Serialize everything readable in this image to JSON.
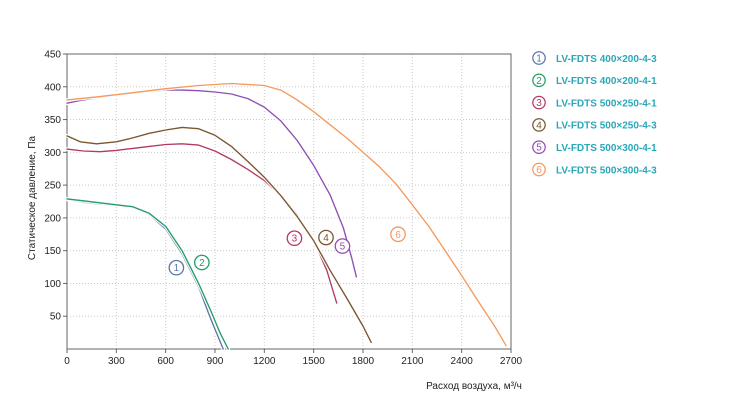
{
  "chart_data": {
    "type": "line",
    "xlabel": "Расход воздуха, м³/ч",
    "ylabel": "Статическое давление, Па",
    "xlim": [
      0,
      2700
    ],
    "ylim": [
      0,
      450
    ],
    "x_ticks": [
      0,
      300,
      600,
      900,
      1200,
      1500,
      1800,
      2100,
      2400,
      2700
    ],
    "y_ticks": [
      50,
      100,
      150,
      200,
      250,
      300,
      350,
      400,
      450
    ],
    "grid": true,
    "legend_position": "right",
    "series": [
      {
        "marker": "1",
        "name": "LV-FDTS 400×200-4-3",
        "color": "#5B77AA",
        "points": [
          [
            0,
            228
          ],
          [
            100,
            224
          ],
          [
            200,
            221
          ],
          [
            300,
            219
          ],
          [
            400,
            216
          ],
          [
            500,
            205
          ],
          [
            600,
            183
          ],
          [
            700,
            145
          ],
          [
            800,
            95
          ],
          [
            860,
            55
          ],
          [
            900,
            30
          ],
          [
            950,
            0
          ]
        ],
        "marker_pos": [
          665,
          124
        ]
      },
      {
        "marker": "2",
        "name": "LV-FDTS 400×200-4-1",
        "color": "#239D65",
        "points": [
          [
            0,
            229
          ],
          [
            100,
            226
          ],
          [
            200,
            223
          ],
          [
            300,
            220
          ],
          [
            400,
            217
          ],
          [
            500,
            207
          ],
          [
            600,
            187
          ],
          [
            700,
            150
          ],
          [
            800,
            100
          ],
          [
            880,
            55
          ],
          [
            930,
            25
          ],
          [
            980,
            0
          ]
        ],
        "marker_pos": [
          820,
          132
        ]
      },
      {
        "marker": "3",
        "name": "LV-FDTS 500×250-4-1",
        "color": "#B33A62",
        "points": [
          [
            0,
            305
          ],
          [
            100,
            302
          ],
          [
            200,
            301
          ],
          [
            300,
            303
          ],
          [
            400,
            306
          ],
          [
            500,
            309
          ],
          [
            600,
            312
          ],
          [
            700,
            313
          ],
          [
            800,
            311
          ],
          [
            900,
            302
          ],
          [
            1000,
            289
          ],
          [
            1100,
            274
          ],
          [
            1200,
            257
          ],
          [
            1300,
            234
          ],
          [
            1400,
            205
          ],
          [
            1500,
            165
          ],
          [
            1580,
            120
          ],
          [
            1640,
            70
          ]
        ],
        "marker_pos": [
          1383,
          169
        ]
      },
      {
        "marker": "4",
        "name": "LV-FDTS 500×250-4-3",
        "color": "#7A562D",
        "points": [
          [
            0,
            325
          ],
          [
            80,
            316
          ],
          [
            180,
            313
          ],
          [
            300,
            316
          ],
          [
            400,
            322
          ],
          [
            500,
            329
          ],
          [
            600,
            334
          ],
          [
            700,
            338
          ],
          [
            800,
            336
          ],
          [
            900,
            326
          ],
          [
            1000,
            309
          ],
          [
            1100,
            286
          ],
          [
            1200,
            262
          ],
          [
            1300,
            234
          ],
          [
            1400,
            202
          ],
          [
            1500,
            165
          ],
          [
            1600,
            120
          ],
          [
            1700,
            78
          ],
          [
            1800,
            35
          ],
          [
            1850,
            10
          ]
        ],
        "marker_pos": [
          1575,
          170
        ]
      },
      {
        "marker": "5",
        "name": "LV-FDTS 500×300-4-1",
        "color": "#8F4EB4",
        "points": [
          [
            0,
            375
          ],
          [
            100,
            380
          ],
          [
            200,
            384
          ],
          [
            300,
            387
          ],
          [
            400,
            390
          ],
          [
            500,
            393
          ],
          [
            600,
            395
          ],
          [
            700,
            395
          ],
          [
            800,
            394
          ],
          [
            900,
            392
          ],
          [
            1000,
            389
          ],
          [
            1100,
            382
          ],
          [
            1200,
            369
          ],
          [
            1300,
            348
          ],
          [
            1400,
            318
          ],
          [
            1500,
            280
          ],
          [
            1600,
            235
          ],
          [
            1680,
            185
          ],
          [
            1730,
            140
          ],
          [
            1760,
            110
          ]
        ],
        "marker_pos": [
          1675,
          157
        ]
      },
      {
        "marker": "6",
        "name": "LV-FDTS 500×300-4-3",
        "color": "#F39A5D",
        "points": [
          [
            0,
            380
          ],
          [
            200,
            385
          ],
          [
            400,
            391
          ],
          [
            600,
            397
          ],
          [
            800,
            402
          ],
          [
            1000,
            405
          ],
          [
            1200,
            402
          ],
          [
            1300,
            395
          ],
          [
            1400,
            380
          ],
          [
            1500,
            362
          ],
          [
            1600,
            342
          ],
          [
            1700,
            322
          ],
          [
            1800,
            300
          ],
          [
            1900,
            278
          ],
          [
            2000,
            252
          ],
          [
            2100,
            220
          ],
          [
            2200,
            187
          ],
          [
            2300,
            150
          ],
          [
            2400,
            112
          ],
          [
            2500,
            73
          ],
          [
            2600,
            35
          ],
          [
            2670,
            5
          ]
        ],
        "marker_pos": [
          2013,
          175
        ]
      }
    ]
  }
}
